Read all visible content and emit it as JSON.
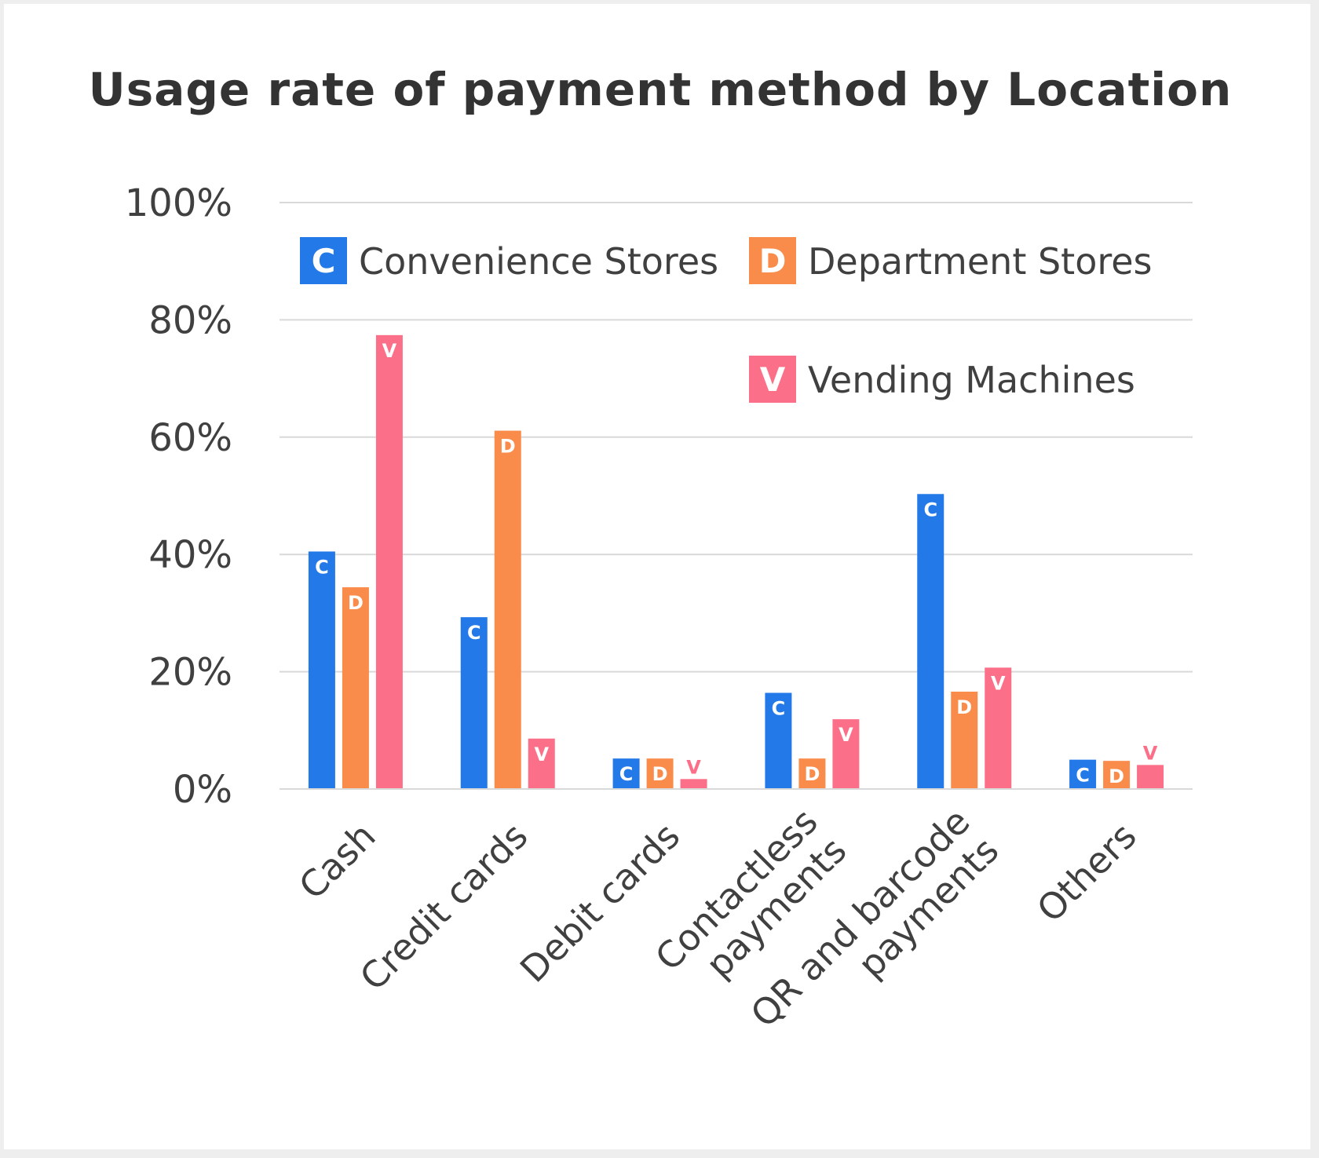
{
  "chart_data": {
    "type": "bar",
    "title": "Usage rate of payment method by Location",
    "xlabel": "",
    "ylabel": "",
    "ylim": [
      0,
      100
    ],
    "yticks": [
      0,
      20,
      40,
      60,
      80,
      100
    ],
    "ytick_labels": [
      "0%",
      "20%",
      "40%",
      "60%",
      "80%",
      "100%"
    ],
    "categories": [
      [
        "Cash"
      ],
      [
        "Credit cards"
      ],
      [
        "Debit cards"
      ],
      [
        "Contactless",
        "payments"
      ],
      [
        "QR and barcode",
        "payments"
      ],
      [
        "Others"
      ]
    ],
    "series": [
      {
        "name": "Convenience Stores",
        "marker": "C",
        "color": "#2479e9",
        "values": [
          40.5,
          29.3,
          5.2,
          16.4,
          50.3,
          5.0
        ]
      },
      {
        "name": "Department Stores",
        "marker": "D",
        "color": "#fa8c4b",
        "values": [
          34.4,
          61.1,
          5.2,
          5.2,
          16.6,
          4.8
        ]
      },
      {
        "name": "Vending Machines",
        "marker": "V",
        "color": "#fb7088",
        "values": [
          77.4,
          8.6,
          1.7,
          11.9,
          20.7,
          4.1
        ]
      }
    ],
    "grid": true,
    "legend_position": "top-right"
  }
}
